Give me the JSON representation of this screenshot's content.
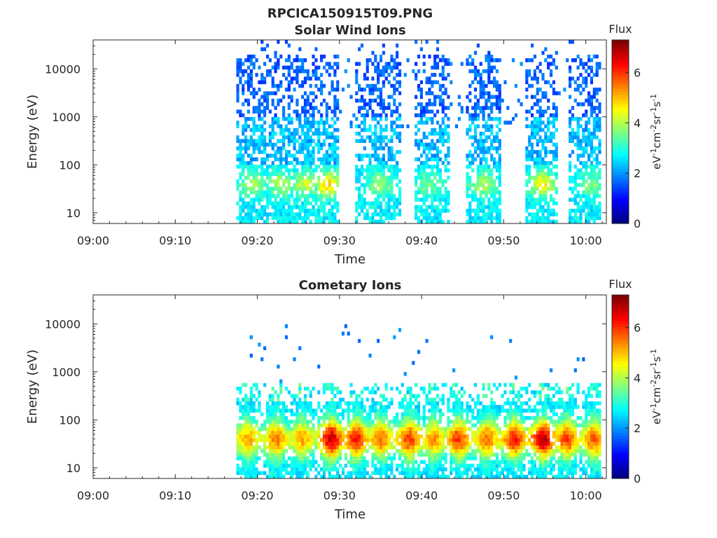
{
  "figure": {
    "title": "RPCICA150915T09.PNG"
  },
  "colors": {
    "axis": "#262626",
    "colormap": "jet",
    "background": "#ffffff"
  },
  "chart_data": [
    {
      "type": "heatmap",
      "title": "Solar Wind Ions",
      "xlabel": "Time",
      "ylabel": "Energy (eV)",
      "x_ticks": [
        "09:00",
        "09:10",
        "09:20",
        "09:30",
        "09:40",
        "09:50",
        "10:00"
      ],
      "xlim_minutes": [
        0,
        62.5
      ],
      "y_scale": "log",
      "y_ticks": [
        "10",
        "100",
        "1000",
        "10000"
      ],
      "ylim": [
        6,
        40000
      ],
      "colorbar": {
        "title": "Flux",
        "label": "eV^-1 cm^-2 sr^-1 s^-1",
        "ticks": [
          "0",
          "2",
          "4",
          "6"
        ],
        "range": [
          0,
          7.3
        ]
      },
      "data_start_minute": 17.5,
      "bursts": [
        {
          "center": 19.5,
          "width": 1.8,
          "peak": 4.3
        },
        {
          "center": 22.8,
          "width": 1.6,
          "peak": 4.4
        },
        {
          "center": 25.8,
          "width": 1.6,
          "peak": 4.5
        },
        {
          "center": 28.6,
          "width": 1.4,
          "peak": 5.3
        },
        {
          "center": 35.0,
          "width": 1.6,
          "peak": 4.2
        },
        {
          "center": 41.0,
          "width": 1.4,
          "peak": 3.9
        },
        {
          "center": 47.4,
          "width": 1.6,
          "peak": 4.4
        },
        {
          "center": 54.7,
          "width": 1.6,
          "peak": 5.0
        },
        {
          "center": 60.8,
          "width": 1.6,
          "peak": 4.0
        }
      ],
      "gaps": [
        [
          30.0,
          32.0
        ],
        [
          37.5,
          39.0
        ],
        [
          43.3,
          45.5
        ],
        [
          49.8,
          52.5
        ],
        [
          56.7,
          58.0
        ]
      ]
    },
    {
      "type": "heatmap",
      "title": "Cometary Ions",
      "xlabel": "Time",
      "ylabel": "Energy (eV)",
      "x_ticks": [
        "09:00",
        "09:10",
        "09:20",
        "09:30",
        "09:40",
        "09:50",
        "10:00"
      ],
      "xlim_minutes": [
        0,
        62.5
      ],
      "y_scale": "log",
      "y_ticks": [
        "10",
        "100",
        "1000",
        "10000"
      ],
      "ylim": [
        6,
        40000
      ],
      "colorbar": {
        "title": "Flux",
        "label": "eV^-1 cm^-2 sr^-1 s^-1",
        "ticks": [
          "0",
          "2",
          "4",
          "6"
        ],
        "range": [
          0,
          7.3
        ]
      },
      "data_start_minute": 17.5,
      "peak_energy": 40,
      "bursts": [
        {
          "center": 18.8,
          "peak": 5.2
        },
        {
          "center": 22.3,
          "peak": 5.5
        },
        {
          "center": 25.5,
          "peak": 5.2
        },
        {
          "center": 29.0,
          "peak": 6.8
        },
        {
          "center": 32.0,
          "peak": 6.3
        },
        {
          "center": 35.0,
          "peak": 5.6
        },
        {
          "center": 38.5,
          "peak": 6.0
        },
        {
          "center": 41.5,
          "peak": 5.3
        },
        {
          "center": 44.5,
          "peak": 6.0
        },
        {
          "center": 48.0,
          "peak": 5.6
        },
        {
          "center": 51.3,
          "peak": 6.2
        },
        {
          "center": 54.8,
          "peak": 6.9
        },
        {
          "center": 57.7,
          "peak": 6.0
        },
        {
          "center": 61.0,
          "peak": 5.8
        }
      ]
    }
  ]
}
